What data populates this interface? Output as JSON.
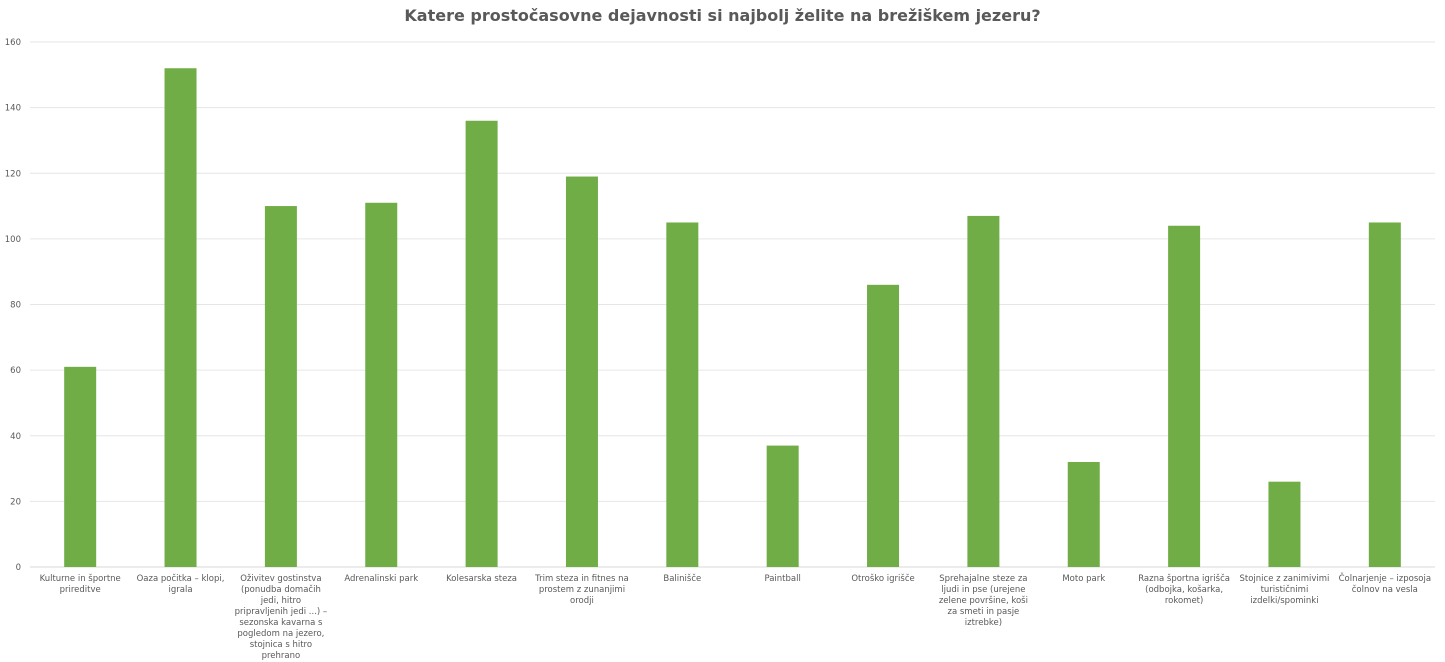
{
  "chart_data": {
    "type": "bar",
    "title": "Katere prostočasovne dejavnosti si najbolj želite na brežiškem jezeru?",
    "xlabel": "",
    "ylabel": "",
    "ylim": [
      0,
      160
    ],
    "yticks": [
      0,
      20,
      40,
      60,
      80,
      100,
      120,
      140,
      160
    ],
    "grid": true,
    "legend": "none",
    "bar_color": "#70AD47",
    "categories": [
      "Kulturne in športne prireditve",
      "Oaza počitka – klopi, igrala",
      "Oživitev gostinstva (ponudba domačih jedi, hitro pripravljenih jedi ...) – sezonska kavarna s pogledom na jezero, stojnica s hitro prehrano",
      "Adrenalinski park",
      "Kolesarska steza",
      "Trim steza in fitnes na prostem z zunanjimi orodji",
      "Balinišče",
      "Paintball",
      "Otroško igrišče",
      "Sprehajalne steze za ljudi in pse (urejene zelene površine, koši za smeti in pasje iztrebke)",
      "Moto park",
      "Razna športna igrišča (odbojka, košarka, rokomet)",
      "Stojnice z zanimivimi turističnimi izdelki/spominki",
      "Čolnarjenje – izposoja čolnov na vesla"
    ],
    "values": [
      61,
      152,
      110,
      111,
      136,
      119,
      105,
      37,
      86,
      107,
      32,
      104,
      26,
      105
    ]
  }
}
